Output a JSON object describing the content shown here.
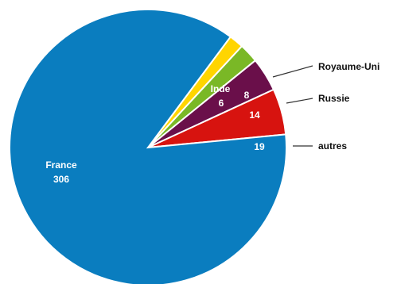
{
  "chart_data": {
    "type": "pie",
    "slices": [
      {
        "label": "France",
        "value": 306,
        "color": "#0a7dbf",
        "label_position": "inside"
      },
      {
        "label": "Inde",
        "value": 6,
        "color": "#ffd500",
        "label_position": "inside"
      },
      {
        "label": "Royaume-Uni",
        "value": 8,
        "color": "#7ab826",
        "label_position": "outside"
      },
      {
        "label": "Russie",
        "value": 14,
        "color": "#6a0f4a",
        "label_position": "outside"
      },
      {
        "label": "autres",
        "value": 19,
        "color": "#d7130f",
        "label_position": "outside"
      }
    ],
    "legend": "none"
  }
}
